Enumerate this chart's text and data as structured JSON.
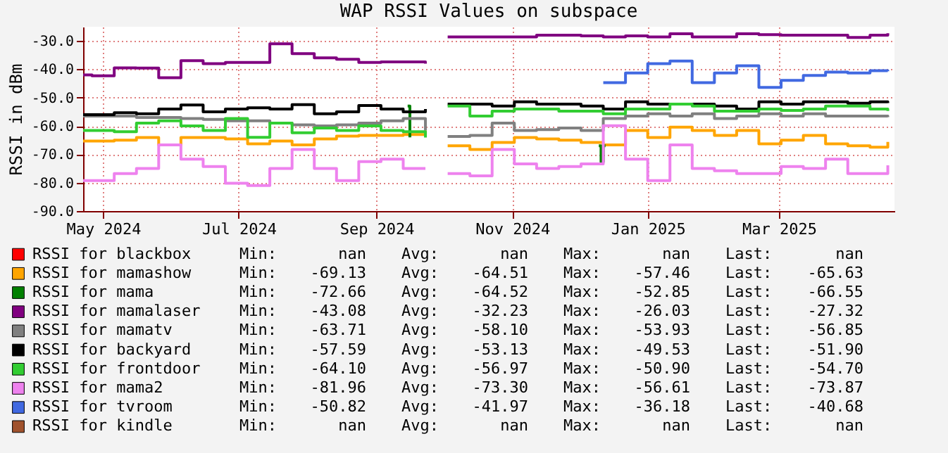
{
  "chart_data": {
    "type": "step",
    "title": "WAP RSSI Values on subspace",
    "ylabel": "RSSI in dBm",
    "x": [
      "2024-04-22",
      "2024-04-26",
      "2024-05-06",
      "2024-05-16",
      "2024-05-26",
      "2024-06-05",
      "2024-06-15",
      "2024-06-25",
      "2024-07-05",
      "2024-07-15",
      "2024-07-25",
      "2024-08-04",
      "2024-08-14",
      "2024-08-24",
      "2024-09-03",
      "2024-09-13",
      "2024-09-23",
      "2024-09-28",
      "2024-10-03",
      "2024-10-13",
      "2024-10-23",
      "2024-11-02",
      "2024-11-12",
      "2024-11-22",
      "2024-12-02",
      "2024-12-12",
      "2024-12-22",
      "2025-01-01",
      "2025-01-11",
      "2025-01-21",
      "2025-01-31",
      "2025-02-10",
      "2025-02-20",
      "2025-03-02",
      "2025-03-12",
      "2025-03-22",
      "2025-04-01",
      "2025-04-11",
      "2025-04-19"
    ],
    "series": [
      {
        "name": "RSSI for blackbox",
        "color": "#ff0000",
        "values": [
          null,
          null,
          null,
          null,
          null,
          null,
          null,
          null,
          null,
          null,
          null,
          null,
          null,
          null,
          null,
          null,
          null,
          null,
          null,
          null,
          null,
          null,
          null,
          null,
          null,
          null,
          null,
          null,
          null,
          null,
          null,
          null,
          null,
          null,
          null,
          null,
          null,
          null,
          null
        ]
      },
      {
        "name": "RSSI for mamashow",
        "color": "#ffa500",
        "values": [
          -65.3,
          -65.3,
          -65,
          -64.1,
          -66.7,
          -64.1,
          -64.1,
          -64.6,
          -66.3,
          -65.3,
          -66.7,
          -64.6,
          -63.6,
          -63.3,
          -63.3,
          -63,
          -61.6,
          null,
          -67,
          -68.3,
          -65.8,
          -64.1,
          -64.6,
          -65,
          -65.8,
          -66.7,
          -61.6,
          -64.1,
          -60.4,
          -61.6,
          -63.3,
          -61.6,
          -66.3,
          -65,
          -63.3,
          -66.3,
          -67,
          -67.5,
          -65.6
        ]
      },
      {
        "name": "RSSI for mama",
        "color": "#008000",
        "x": [
          "2024-09-15",
          "2024-09-16",
          "2024-09-17",
          "2024-12-10",
          "2024-12-11",
          "2024-12-12",
          "2024-12-13"
        ],
        "values": [
          -53,
          -64,
          null,
          -67,
          -72.7,
          -67,
          -67
        ]
      },
      {
        "name": "RSSI for mamalaser",
        "color": "#800080",
        "values": [
          -42,
          -42.3,
          -39.5,
          -39.6,
          -43,
          -37,
          -38,
          -37.6,
          -37.6,
          -31,
          -34.5,
          -36,
          -36.5,
          -37.6,
          -37.4,
          -37.4,
          -38,
          null,
          -28.6,
          -28.6,
          -28.6,
          -28.6,
          -28,
          -28,
          -28.2,
          -28.6,
          -28.2,
          -28.6,
          -27.5,
          -28.6,
          -28.6,
          -27.5,
          -27.8,
          -28,
          -28,
          -28,
          -28.8,
          -28,
          -27.3
        ]
      },
      {
        "name": "RSSI for mamatv",
        "color": "#808080",
        "values": [
          -56.5,
          -56.5,
          -56.5,
          -57,
          -57,
          -57.4,
          -57.7,
          -58.2,
          -58.2,
          -59,
          -59.6,
          -60,
          -59.6,
          -59,
          -58.2,
          -57.4,
          -61.6,
          null,
          -63.7,
          -63.3,
          -59,
          -61.6,
          -61.3,
          -60.7,
          -61.6,
          -57.4,
          -56.5,
          -55.7,
          -56.5,
          -55.7,
          -57.4,
          -56.5,
          -55.7,
          -56.5,
          -55.7,
          -56.5,
          -56.5,
          -56.5,
          -56.9
        ]
      },
      {
        "name": "RSSI for backyard",
        "color": "#000000",
        "values": [
          -56,
          -56,
          -55.3,
          -55.7,
          -54,
          -52.6,
          -55,
          -54,
          -53.6,
          -54,
          -52.5,
          -55.7,
          -55,
          -52.8,
          -54,
          -55,
          -54,
          null,
          -52.3,
          -52.3,
          -53,
          -51.5,
          -52.3,
          -52.3,
          -53,
          -54,
          -51.5,
          -52.3,
          -52.3,
          -52.3,
          -53,
          -54,
          -51.5,
          -52.3,
          -51.5,
          -51.5,
          -52,
          -51.5,
          -51.9
        ]
      },
      {
        "name": "RSSI for frontdoor",
        "color": "#32cd32",
        "values": [
          -61.6,
          -61.6,
          -62,
          -59,
          -58.2,
          -60,
          -61.6,
          -57.4,
          -64,
          -59,
          -62.4,
          -60.7,
          -61.6,
          -60,
          -61.6,
          -62,
          -64.1,
          null,
          -53,
          -56.5,
          -54.8,
          -54,
          -54,
          -54.8,
          -54.8,
          -55.7,
          -54,
          -54,
          -52.3,
          -53,
          -54.8,
          -54.8,
          -54,
          -54.5,
          -54,
          -53,
          -53,
          -54,
          -54.7
        ]
      },
      {
        "name": "RSSI for mama2",
        "color": "#ee82ee",
        "values": [
          -79.3,
          -79.3,
          -76.8,
          -75,
          -66.7,
          -71.7,
          -74.3,
          -80.2,
          -81,
          -75,
          -68.3,
          -75,
          -79.3,
          -72.6,
          -71.7,
          -75,
          -75,
          null,
          -76.8,
          -77.6,
          -68.3,
          -73.4,
          -75,
          -74.3,
          -73.4,
          -59.9,
          -71.7,
          -79.3,
          -66.7,
          -75,
          -75.8,
          -76.8,
          -76.8,
          -74.3,
          -75,
          -71.7,
          -76.8,
          -76.8,
          -73.9
        ]
      },
      {
        "name": "RSSI for tvroom",
        "color": "#4169e1",
        "values": [
          null,
          null,
          null,
          null,
          null,
          null,
          null,
          null,
          null,
          null,
          null,
          null,
          null,
          null,
          null,
          null,
          null,
          null,
          null,
          null,
          null,
          null,
          null,
          null,
          null,
          -44.7,
          -41.3,
          -38,
          -37.1,
          -44.7,
          -41.3,
          -38.8,
          -46.4,
          -43.9,
          -42.2,
          -41,
          -41.3,
          -40.5,
          -40.7
        ]
      },
      {
        "name": "RSSI for kindle",
        "color": "#a0522d",
        "values": [
          null,
          null,
          null,
          null,
          null,
          null,
          null,
          null,
          null,
          null,
          null,
          null,
          null,
          null,
          null,
          null,
          null,
          null,
          null,
          null,
          null,
          null,
          null,
          null,
          null,
          null,
          null,
          null,
          null,
          null,
          null,
          null,
          null,
          null,
          null,
          null,
          null,
          null,
          null
        ]
      }
    ],
    "xlim": [
      "2024-04-22",
      "2025-04-22"
    ],
    "xticks": [
      {
        "value": "2024-05-01",
        "label": "May 2024"
      },
      {
        "value": "2024-07-01",
        "label": "Jul 2024"
      },
      {
        "value": "2024-09-01",
        "label": "Sep 2024"
      },
      {
        "value": "2024-11-01",
        "label": "Nov 2024"
      },
      {
        "value": "2025-01-01",
        "label": "Jan 2025"
      },
      {
        "value": "2025-03-01",
        "label": "Mar 2025"
      }
    ],
    "ylim": [
      -90,
      -25
    ],
    "yticks": [
      {
        "value": -90,
        "label": "-90.0"
      },
      {
        "value": -80,
        "label": "-80.0"
      },
      {
        "value": -70,
        "label": "-70.0"
      },
      {
        "value": -60,
        "label": "-60.0"
      },
      {
        "value": -50,
        "label": "-50.0"
      },
      {
        "value": -40,
        "label": "-40.0"
      },
      {
        "value": -30,
        "label": "-30.0"
      }
    ],
    "grid": true,
    "legend": "bottom",
    "annotations": [
      "Min: nan Avg: nan Max: nan Last: nan",
      "Min: -69.13 Avg: -64.51 Max: -57.46 Last: -65.63",
      "Min: -72.66 Avg: -64.52 Max: -52.85 Last: -66.55",
      "Min: -43.08 Avg: -32.23 Max: -26.03 Last: -27.32",
      "Min: -63.71 Avg: -58.10 Max: -53.93 Last: -56.85",
      "Min: -57.59 Avg: -53.13 Max: -49.53 Last: -51.90",
      "Min: -64.10 Avg: -56.97 Max: -50.90 Last: -54.70",
      "Min: -81.96 Avg: -73.30 Max: -56.61 Last: -73.87",
      "Min: -50.82 Avg: -41.97 Max: -36.18 Last: -40.68",
      "Min: nan Avg: nan Max: nan Last: nan"
    ]
  }
}
